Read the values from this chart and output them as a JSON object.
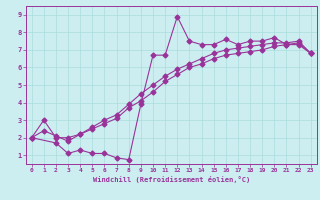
{
  "xlabel": "Windchill (Refroidissement éolien,°C)",
  "background_color": "#cceef0",
  "line_color": "#993399",
  "xlim": [
    -0.5,
    23.5
  ],
  "ylim": [
    0.5,
    9.5
  ],
  "xticks": [
    0,
    1,
    2,
    3,
    4,
    5,
    6,
    7,
    8,
    9,
    10,
    11,
    12,
    13,
    14,
    15,
    16,
    17,
    18,
    19,
    20,
    21,
    22,
    23
  ],
  "yticks": [
    1,
    2,
    3,
    4,
    5,
    6,
    7,
    8,
    9
  ],
  "grid_color": "#aadddd",
  "series1_x": [
    0,
    2,
    3,
    4,
    5,
    6,
    7,
    8,
    9,
    10,
    11,
    12,
    13,
    14,
    15,
    16,
    17,
    18,
    19,
    20,
    21,
    22,
    23
  ],
  "series1_y": [
    2.0,
    1.7,
    1.1,
    1.3,
    1.1,
    1.1,
    0.85,
    0.75,
    3.9,
    6.7,
    6.7,
    8.9,
    7.5,
    7.3,
    7.3,
    7.6,
    7.3,
    7.5,
    7.5,
    7.7,
    7.3,
    7.3,
    6.8
  ],
  "series2_x": [
    0,
    1,
    2,
    3,
    4,
    5,
    6,
    7,
    8,
    9,
    10,
    11,
    12,
    13,
    14,
    15,
    16,
    17,
    18,
    19,
    20,
    21,
    22,
    23
  ],
  "series2_y": [
    2.0,
    2.4,
    2.1,
    1.8,
    2.2,
    2.6,
    3.0,
    3.3,
    3.9,
    4.5,
    5.0,
    5.5,
    5.9,
    6.2,
    6.5,
    6.8,
    7.0,
    7.1,
    7.2,
    7.3,
    7.4,
    7.4,
    7.5,
    6.8
  ],
  "series3_x": [
    0,
    1,
    2,
    3,
    4,
    5,
    6,
    7,
    8,
    9,
    10,
    11,
    12,
    13,
    14,
    15,
    16,
    17,
    18,
    19,
    20,
    21,
    22,
    23
  ],
  "series3_y": [
    2.0,
    3.0,
    2.0,
    2.0,
    2.2,
    2.5,
    2.8,
    3.1,
    3.7,
    4.1,
    4.6,
    5.2,
    5.6,
    6.0,
    6.2,
    6.5,
    6.7,
    6.8,
    6.9,
    7.0,
    7.2,
    7.3,
    7.4,
    6.8
  ]
}
